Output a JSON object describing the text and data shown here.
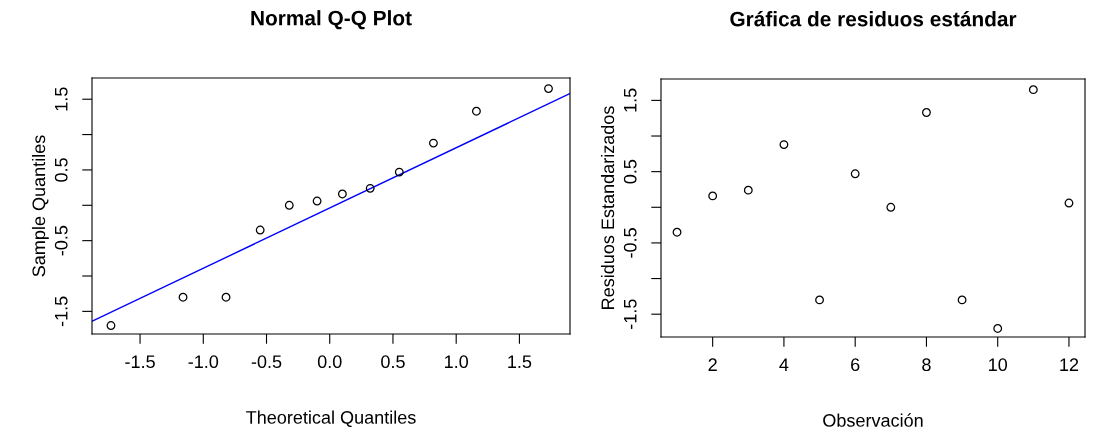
{
  "chart_data": [
    {
      "type": "scatter",
      "title": "Normal Q-Q Plot",
      "xlabel": "Theoretical Quantiles",
      "ylabel": "Sample Quantiles",
      "marker": "circle",
      "grid": false,
      "legend": false,
      "x": [
        -1.73,
        -1.16,
        -0.82,
        -0.55,
        -0.32,
        -0.1,
        0.1,
        0.32,
        0.55,
        0.82,
        1.16,
        1.73
      ],
      "series": [
        {
          "color": "#000000",
          "values": [
            -1.7,
            -1.3,
            -1.3,
            -0.35,
            0.0,
            0.06,
            0.16,
            0.24,
            0.47,
            0.88,
            1.33,
            1.65
          ]
        },
        {
          "type": "line",
          "color": "#0000ff",
          "marker": "none",
          "line_style": "solid",
          "x": [
            -1.88,
            1.9
          ],
          "values": [
            -1.64,
            1.58
          ]
        }
      ],
      "xlim": [
        -1.88,
        1.9
      ],
      "ylim": [
        -1.82,
        1.8
      ],
      "xticks": [
        -1.5,
        {
          "value": -1,
          "label": "-1.0"
        },
        -0.5,
        {
          "value": 0,
          "label": "0.0"
        },
        0.5,
        {
          "value": 1,
          "label": "1.0"
        },
        1.5
      ],
      "yticks": [
        -1.5,
        {
          "value": -1,
          "label": null
        },
        -0.5,
        {
          "value": 0,
          "label": null
        },
        0.5,
        {
          "value": 1,
          "label": null
        },
        1.5
      ]
    },
    {
      "type": "scatter",
      "title": "Gráfica de residuos estándar",
      "xlabel": "Observación",
      "ylabel": "Residuos Estandarizados",
      "marker": "circle",
      "grid": false,
      "legend": false,
      "x": [
        1,
        2,
        3,
        4,
        5,
        6,
        7,
        8,
        9,
        10,
        11,
        12
      ],
      "series": [
        {
          "color": "#000000",
          "values": [
            -0.35,
            0.16,
            0.24,
            0.88,
            -1.3,
            0.47,
            0.0,
            1.33,
            -1.3,
            -1.7,
            1.65,
            0.06
          ]
        }
      ],
      "xlim": [
        0.55,
        12.45
      ],
      "ylim": [
        -1.82,
        1.8
      ],
      "xticks": [
        2,
        4,
        6,
        8,
        10,
        12
      ],
      "yticks": [
        -1.5,
        {
          "value": -1,
          "label": null
        },
        -0.5,
        {
          "value": 0,
          "label": null
        },
        0.5,
        {
          "value": 1,
          "label": null
        },
        1.5
      ]
    }
  ]
}
